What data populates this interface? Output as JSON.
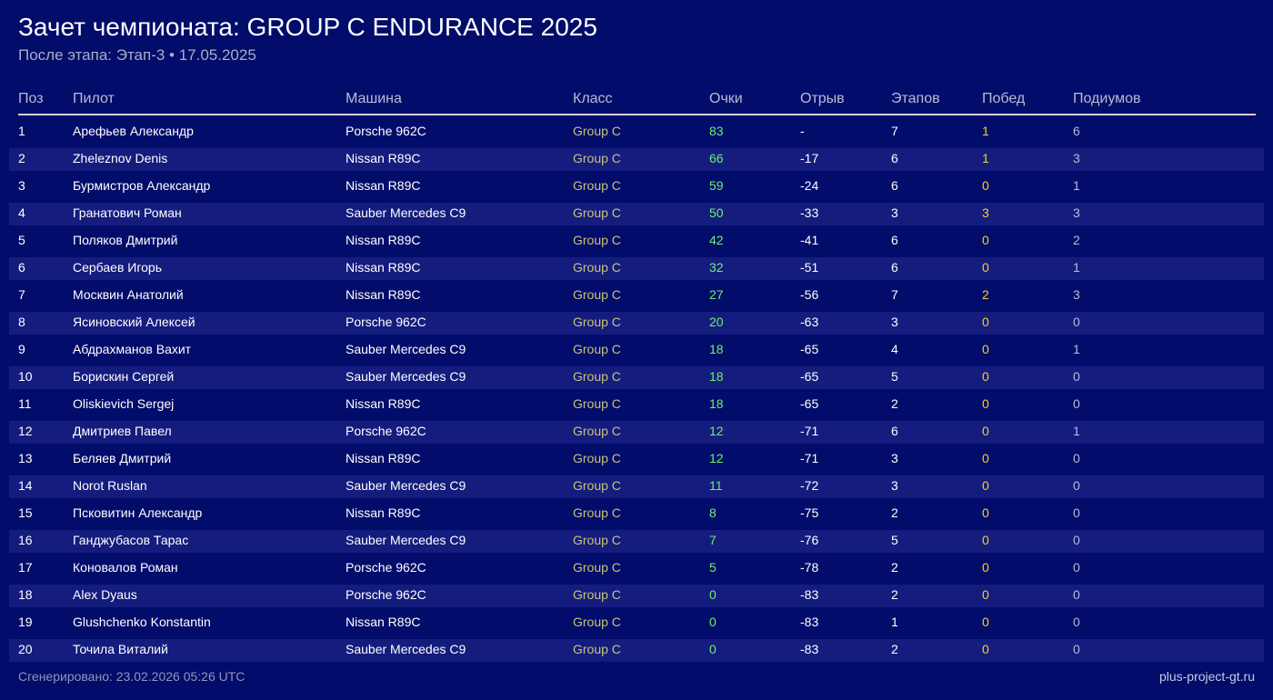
{
  "title": "Зачет чемпионата: GROUP C ENDURANCE 2025",
  "subtitle": "После этапа: Этап-3 • 17.05.2025",
  "columns": [
    "Поз",
    "Пилот",
    "Машина",
    "Класс",
    "Очки",
    "Отрыв",
    "Этапов",
    "Побед",
    "Подиумов"
  ],
  "rows": [
    [
      "1",
      "Арефьев Александр",
      "Porsche 962C",
      "Group C",
      "83",
      "-",
      "7",
      "1",
      "6"
    ],
    [
      "2",
      "Zheleznov Denis",
      "Nissan R89C",
      "Group C",
      "66",
      "-17",
      "6",
      "1",
      "3"
    ],
    [
      "3",
      "Бурмистров Александр",
      "Nissan R89C",
      "Group C",
      "59",
      "-24",
      "6",
      "0",
      "1"
    ],
    [
      "4",
      "Гранатович Роман",
      "Sauber Mercedes C9",
      "Group C",
      "50",
      "-33",
      "3",
      "3",
      "3"
    ],
    [
      "5",
      "Поляков Дмитрий",
      "Nissan R89C",
      "Group C",
      "42",
      "-41",
      "6",
      "0",
      "2"
    ],
    [
      "6",
      "Сербаев Игорь",
      "Nissan R89C",
      "Group C",
      "32",
      "-51",
      "6",
      "0",
      "1"
    ],
    [
      "7",
      "Москвин Анатолий",
      "Nissan R89C",
      "Group C",
      "27",
      "-56",
      "7",
      "2",
      "3"
    ],
    [
      "8",
      "Ясиновский Алексей",
      "Porsche 962C",
      "Group C",
      "20",
      "-63",
      "3",
      "0",
      "0"
    ],
    [
      "9",
      "Абдрахманов Вахит",
      "Sauber Mercedes C9",
      "Group C",
      "18",
      "-65",
      "4",
      "0",
      "1"
    ],
    [
      "10",
      "Борискин Сергей",
      "Sauber Mercedes C9",
      "Group C",
      "18",
      "-65",
      "5",
      "0",
      "0"
    ],
    [
      "11",
      "Oliskievich Sergej",
      "Nissan R89C",
      "Group C",
      "18",
      "-65",
      "2",
      "0",
      "0"
    ],
    [
      "12",
      "Дмитриев Павел",
      "Porsche 962C",
      "Group C",
      "12",
      "-71",
      "6",
      "0",
      "1"
    ],
    [
      "13",
      "Беляев Дмитрий",
      "Nissan R89C",
      "Group C",
      "12",
      "-71",
      "3",
      "0",
      "0"
    ],
    [
      "14",
      "Norot Ruslan",
      "Sauber Mercedes C9",
      "Group C",
      "11",
      "-72",
      "3",
      "0",
      "0"
    ],
    [
      "15",
      "Псковитин Александр",
      "Nissan R89C",
      "Group C",
      "8",
      "-75",
      "2",
      "0",
      "0"
    ],
    [
      "16",
      "Ганджубасов Тарас",
      "Sauber Mercedes C9",
      "Group C",
      "7",
      "-76",
      "5",
      "0",
      "0"
    ],
    [
      "17",
      "Коновалов Роман",
      "Porsche 962C",
      "Group C",
      "5",
      "-78",
      "2",
      "0",
      "0"
    ],
    [
      "18",
      "Alex Dyaus",
      "Porsche 962C",
      "Group C",
      "0",
      "-83",
      "2",
      "0",
      "0"
    ],
    [
      "19",
      "Glushchenko Konstantin",
      "Nissan R89C",
      "Group C",
      "0",
      "-83",
      "1",
      "0",
      "0"
    ],
    [
      "20",
      "Точила Виталий",
      "Sauber Mercedes C9",
      "Group C",
      "0",
      "-83",
      "2",
      "0",
      "0"
    ]
  ],
  "footer": {
    "generated": "Сгенерировано: 23.02.2026 05:26 UTC",
    "site": "plus-project-gt.ru"
  }
}
